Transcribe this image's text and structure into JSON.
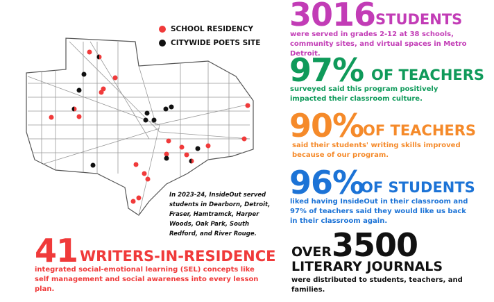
{
  "legend": {
    "school": "SCHOOL RESIDENCY",
    "citywide": "CITYWIDE POETS SITE"
  },
  "map_caption": "In 2023-24, InsideOut served students in Dearborn, Detroit, Fraser, Hamtramck, Harper Woods, Oak Park, South Redford, and River Rouge.",
  "stats": [
    {
      "number": "3016",
      "unit": "STUDENTS",
      "text": "were served in grades 2-12 at 38 schools, community sites, and virtual spaces in Metro Detroit."
    },
    {
      "number": "97%",
      "unit": "OF TEACHERS",
      "text": "surveyed said this program positively impacted their classroom culture."
    },
    {
      "number": "90%",
      "unit": "OF TEACHERS",
      "text": "said their students' writing skills improved because of our program."
    },
    {
      "number": "96%",
      "unit": "OF STUDENTS",
      "text": "liked having InsideOut in their classroom and 97% of teachers said they would like us back in their classroom again."
    },
    {
      "number": "41",
      "unit": "WRITERS-IN-RESIDENCE",
      "text": "integrated social-emotional learning (SEL) concepts like self management and social awareness into every lesson plan."
    },
    {
      "prefix": "OVER",
      "number": "3500",
      "unit": "LITERARY JOURNALS",
      "text": "were distributed to students, teachers, and families."
    }
  ]
}
